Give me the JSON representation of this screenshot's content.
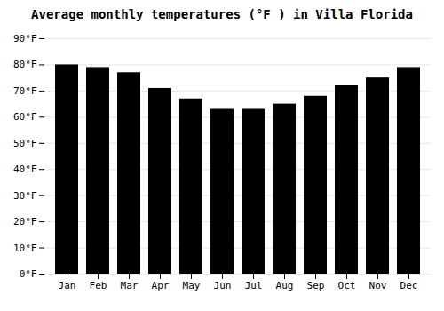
{
  "chart_data": {
    "type": "bar",
    "title": "Average monthly temperatures (°F ) in Villa Florida",
    "categories": [
      "Jan",
      "Feb",
      "Mar",
      "Apr",
      "May",
      "Jun",
      "Jul",
      "Aug",
      "Sep",
      "Oct",
      "Nov",
      "Dec"
    ],
    "values": [
      80,
      79,
      77,
      71,
      67,
      63,
      63,
      65,
      68,
      72,
      75,
      79
    ],
    "ylim": [
      0,
      90
    ],
    "yticks": [
      {
        "value": 0,
        "label": "0°F"
      },
      {
        "value": 10,
        "label": "10°F"
      },
      {
        "value": 20,
        "label": "20°F"
      },
      {
        "value": 30,
        "label": "30°F"
      },
      {
        "value": 40,
        "label": "40°F"
      },
      {
        "value": 50,
        "label": "50°F"
      },
      {
        "value": 60,
        "label": "60°F"
      },
      {
        "value": 70,
        "label": "70°F"
      },
      {
        "value": 80,
        "label": "80°F"
      },
      {
        "value": 90,
        "label": "90°F"
      }
    ],
    "grid": true
  }
}
